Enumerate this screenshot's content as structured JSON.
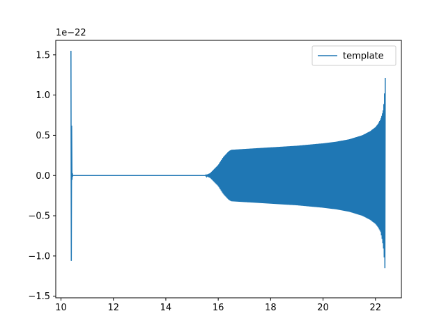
{
  "chart_data": {
    "type": "line",
    "title": "",
    "xlabel": "",
    "ylabel": "",
    "xlim": [
      9.8,
      22.99
    ],
    "ylim": [
      -1.52,
      1.68
    ],
    "y_offset_text": "1e−22",
    "x_ticks": [
      10,
      12,
      14,
      16,
      18,
      20,
      22
    ],
    "x_tick_labels": [
      "10",
      "12",
      "14",
      "16",
      "18",
      "20",
      "22"
    ],
    "y_ticks": [
      -1.5,
      -1.0,
      -0.5,
      0.0,
      0.5,
      1.0,
      1.5
    ],
    "y_tick_labels": [
      "−1.5",
      "−1.0",
      "−0.5",
      "0.0",
      "0.5",
      "1.0",
      "1.5"
    ],
    "grid": false,
    "legend_position": "top-right",
    "series": [
      {
        "name": "template",
        "color": "#1f77b4",
        "style": "oscillating chirp signal",
        "envelope_upper": {
          "x": [
            10.38,
            10.4,
            10.42,
            10.45,
            10.5,
            12.0,
            14.0,
            15.5,
            15.7,
            16.0,
            16.2,
            16.4,
            16.5,
            17.0,
            18.0,
            19.0,
            20.0,
            20.5,
            21.0,
            21.5,
            21.8,
            22.0,
            22.1,
            22.2,
            22.25,
            22.3,
            22.33,
            22.36,
            22.38
          ],
          "y": [
            1.55,
            0.9,
            0.05,
            0.0,
            0.0,
            0.0,
            0.0,
            0.0,
            0.03,
            0.13,
            0.23,
            0.3,
            0.32,
            0.33,
            0.35,
            0.37,
            0.4,
            0.42,
            0.45,
            0.5,
            0.55,
            0.6,
            0.64,
            0.7,
            0.75,
            0.82,
            0.92,
            1.1,
            1.27
          ]
        },
        "envelope_lower": {
          "x": [
            10.38,
            10.4,
            10.42,
            10.45,
            10.5,
            12.0,
            14.0,
            15.5,
            15.7,
            16.0,
            16.2,
            16.4,
            16.5,
            17.0,
            18.0,
            19.0,
            20.0,
            20.5,
            21.0,
            21.5,
            21.8,
            22.0,
            22.1,
            22.2,
            22.25,
            22.3,
            22.33,
            22.36,
            22.38
          ],
          "y": [
            -1.38,
            -0.9,
            -0.05,
            0.0,
            0.0,
            0.0,
            0.0,
            0.0,
            -0.03,
            -0.13,
            -0.23,
            -0.3,
            -0.32,
            -0.33,
            -0.35,
            -0.37,
            -0.4,
            -0.42,
            -0.45,
            -0.5,
            -0.55,
            -0.6,
            -0.64,
            -0.7,
            -0.78,
            -0.88,
            -1.0,
            -1.15,
            -1.33
          ]
        }
      }
    ]
  }
}
